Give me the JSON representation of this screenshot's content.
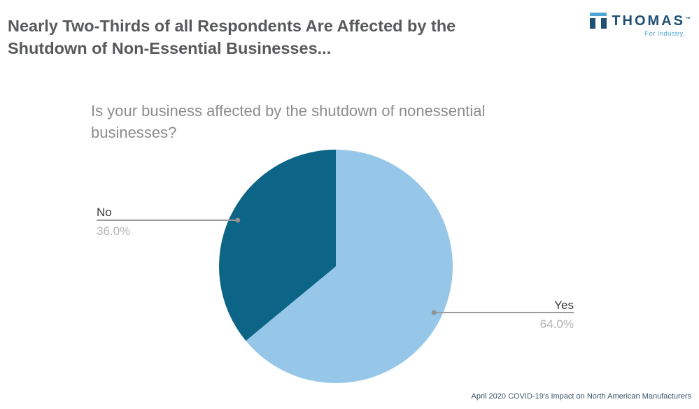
{
  "header": {
    "title_lines": [
      "Nearly Two-Thirds of all Respondents Are Affected by the",
      "Shutdown of Non-Essential Businesses..."
    ],
    "title_color": "#58595B"
  },
  "logo": {
    "brand": "THOMAS",
    "trademark": "™",
    "tagline": "For Industry.",
    "navy": "#1E4F74",
    "light_blue": "#4EA6D6"
  },
  "chart_data": {
    "type": "pie",
    "title": "Is your business affected by the shutdown of nonessential businesses?",
    "title_color": "#8C8C8C",
    "categories": [
      "Yes",
      "No"
    ],
    "values": [
      64.0,
      36.0
    ],
    "slices": [
      {
        "label": "Yes",
        "value": 64.0,
        "display_value": "64.0%",
        "color": "#97C7E8"
      },
      {
        "label": "No",
        "value": 36.0,
        "display_value": "36.0%",
        "color": "#0C6487"
      }
    ],
    "start_angle_deg": 0,
    "direction": "clockwise",
    "label_style": "callout-with-leader-line",
    "leader_line_color": "#9B9B9B",
    "leader_dot_color": "#919191",
    "legend_position": "none"
  },
  "footer": {
    "caption": "April 2020 COVID-19's Impact on North American Manufacturers",
    "caption_color": "#3B5468"
  }
}
